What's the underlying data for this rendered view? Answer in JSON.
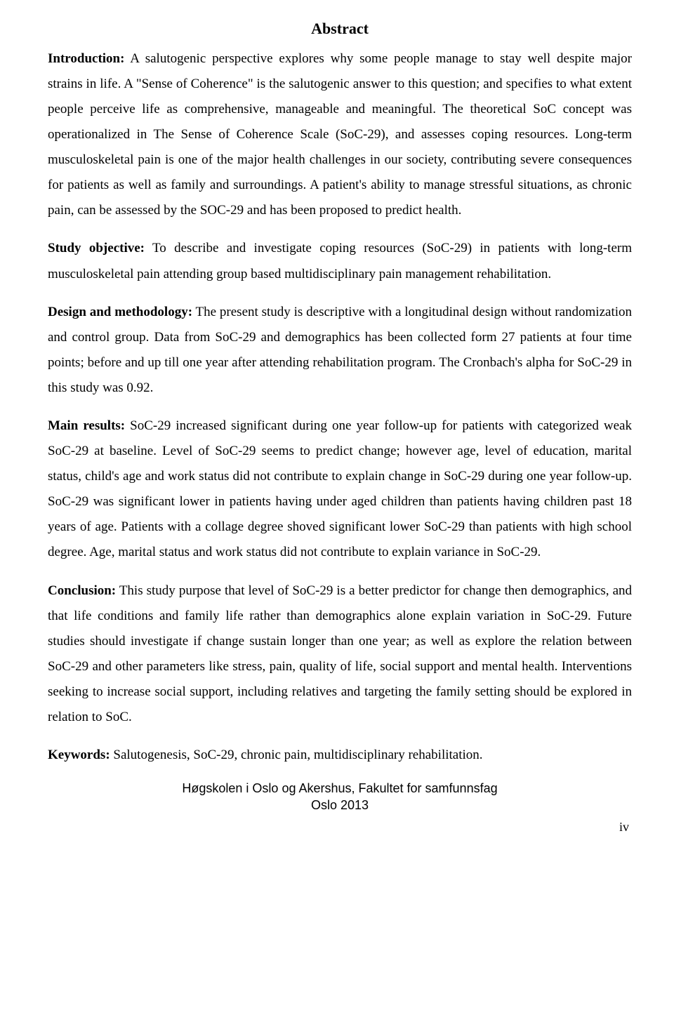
{
  "title": "Abstract",
  "sections": {
    "intro": {
      "label": "Introduction:",
      "text": " A salutogenic perspective explores why some people manage to stay well despite major strains in life. A \"Sense of Coherence\" is the salutogenic answer to this question; and specifies to what extent people perceive life as comprehensive, manageable and meaningful. The theoretical SoC concept was operationalized in The Sense of Coherence Scale (SoC-29), and assesses coping resources. Long-term musculoskeletal pain is one of the major health challenges in our society, contributing severe consequences for patients as well as family and surroundings. A patient's ability to manage stressful situations, as chronic pain, can be assessed by the SOC-29 and has been proposed to predict health."
    },
    "objective": {
      "label": "Study objective:",
      "text": " To describe and investigate coping resources (SoC-29) in patients with long-term musculoskeletal pain attending group based multidisciplinary pain management rehabilitation."
    },
    "design": {
      "label": "Design and methodology:",
      "text": " The present study is descriptive with a longitudinal design without randomization and control group. Data from SoC-29 and demographics has been collected form 27 patients at four time points; before and up till one year after attending rehabilitation program. The Cronbach's alpha for SoC-29 in this study was 0.92."
    },
    "results": {
      "label": "Main results:",
      "text": " SoC-29 increased significant during one year follow-up for patients with categorized weak SoC-29 at baseline. Level of SoC-29 seems to predict change; however age, level of education, marital status, child's age and work status did not contribute to explain change in SoC-29 during one year follow-up. SoC-29 was significant lower in patients having under aged children than patients having children past 18 years of age. Patients with a collage degree shoved significant lower SoC-29 than patients with high school degree. Age, marital status and work status did not contribute to explain variance in SoC-29."
    },
    "conclusion": {
      "label": "Conclusion:",
      "text": " This study purpose that level of SoC-29 is a better predictor for change then demographics, and that life conditions and family life rather than demographics alone explain variation in SoC-29. Future studies should investigate if change sustain longer than one year; as well as explore the relation between SoC-29 and other parameters like stress, pain, quality of life, social support and mental health. Interventions seeking to increase social support, including relatives and targeting the family setting should be explored in relation to SoC."
    },
    "keywords": {
      "label": "Keywords:",
      "text": " Salutogenesis, SoC-29, chronic pain, multidisciplinary rehabilitation."
    }
  },
  "footer": {
    "line1": "Høgskolen i Oslo og Akershus, Fakultet for samfunnsfag",
    "line2": "Oslo 2013"
  },
  "page_number": "iv"
}
